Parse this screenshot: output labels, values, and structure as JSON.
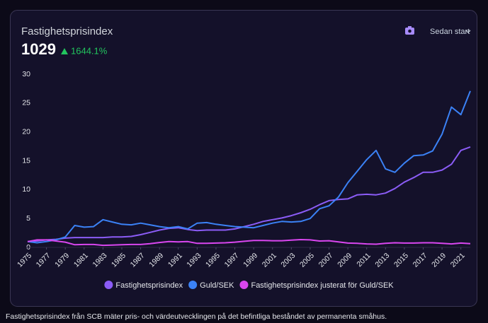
{
  "header": {
    "title": "Fastighetsprisindex",
    "value": "1029",
    "change": "1644.1%",
    "range_control": "Sedan start"
  },
  "footnote": "Fastighetsprisindex från SCB mäter pris- och värdeutvecklingen på det befintliga beståndet av permanenta småhus.",
  "chart_data": {
    "type": "line",
    "x": [
      1975,
      1976,
      1977,
      1978,
      1979,
      1980,
      1981,
      1982,
      1983,
      1984,
      1985,
      1986,
      1987,
      1988,
      1989,
      1990,
      1991,
      1992,
      1993,
      1994,
      1995,
      1996,
      1997,
      1998,
      1999,
      2000,
      2001,
      2002,
      2003,
      2004,
      2005,
      2006,
      2007,
      2008,
      2009,
      2010,
      2011,
      2012,
      2013,
      2014,
      2015,
      2016,
      2017,
      2018,
      2019,
      2020,
      2021,
      2022
    ],
    "xlim": [
      1975,
      2022
    ],
    "xticks": [
      1975,
      1977,
      1979,
      1981,
      1983,
      1985,
      1987,
      1989,
      1991,
      1993,
      1995,
      1997,
      1999,
      2001,
      2003,
      2005,
      2007,
      2009,
      2011,
      2013,
      2015,
      2017,
      2019,
      2021
    ],
    "ylim": [
      0,
      30
    ],
    "yticks": [
      0,
      5,
      10,
      15,
      20,
      25,
      30
    ],
    "legend": "bottom",
    "series": [
      {
        "name": "Fastighetsprisindex",
        "color": "#8b5cf6",
        "values": [
          1,
          1.1,
          1.3,
          1.4,
          1.6,
          1.7,
          1.7,
          1.7,
          1.7,
          1.8,
          1.8,
          1.9,
          2.2,
          2.6,
          3.0,
          3.3,
          3.4,
          3.1,
          2.9,
          3.0,
          3.0,
          3.0,
          3.2,
          3.6,
          4.0,
          4.5,
          4.8,
          5.1,
          5.5,
          6.0,
          6.6,
          7.4,
          8.1,
          8.3,
          8.4,
          9.1,
          9.2,
          9.1,
          9.4,
          10.2,
          11.3,
          12.1,
          13.0,
          13.0,
          13.4,
          14.4,
          16.8,
          17.4
        ]
      },
      {
        "name": "Guld/SEK",
        "color": "#3b82f6",
        "values": [
          1,
          0.8,
          1.0,
          1.3,
          1.8,
          3.8,
          3.5,
          3.6,
          4.8,
          4.4,
          4.0,
          3.9,
          4.2,
          3.9,
          3.6,
          3.4,
          3.6,
          3.2,
          4.2,
          4.3,
          4.0,
          3.8,
          3.6,
          3.5,
          3.4,
          3.8,
          4.2,
          4.5,
          4.4,
          4.5,
          5.0,
          6.7,
          7.2,
          8.7,
          11.2,
          13.2,
          15.2,
          16.8,
          13.6,
          13.0,
          14.6,
          15.9,
          16.0,
          16.7,
          19.6,
          24.3,
          23.0,
          27.1
        ]
      },
      {
        "name": "Fastighetsprisindex justerat för Guld/SEK",
        "color": "#d946ef",
        "values": [
          1.0,
          1.3,
          1.3,
          1.1,
          0.9,
          0.45,
          0.5,
          0.5,
          0.35,
          0.4,
          0.45,
          0.5,
          0.5,
          0.65,
          0.85,
          1.0,
          0.95,
          1.0,
          0.7,
          0.7,
          0.75,
          0.8,
          0.9,
          1.05,
          1.2,
          1.2,
          1.15,
          1.15,
          1.25,
          1.35,
          1.3,
          1.1,
          1.15,
          0.95,
          0.75,
          0.7,
          0.6,
          0.55,
          0.7,
          0.8,
          0.75,
          0.75,
          0.8,
          0.8,
          0.7,
          0.6,
          0.75,
          0.65
        ]
      }
    ]
  }
}
